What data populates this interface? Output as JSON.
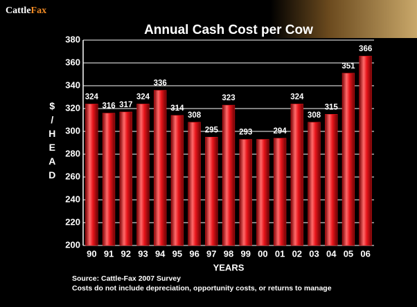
{
  "logo": {
    "first": "Cattle",
    "second": "Fax"
  },
  "chart_data": {
    "type": "bar",
    "title": "Annual Cash Cost per Cow",
    "categories": [
      "90",
      "91",
      "92",
      "93",
      "94",
      "95",
      "96",
      "97",
      "98",
      "99",
      "00",
      "01",
      "02",
      "03",
      "04",
      "05",
      "06"
    ],
    "values": [
      324,
      316,
      317,
      324,
      336,
      314,
      308,
      295,
      323,
      293,
      293,
      294,
      324,
      308,
      315,
      351,
      366
    ],
    "value_labels": [
      "324",
      "316",
      "317",
      "324",
      "336",
      "314",
      "308",
      "295",
      "323",
      "293",
      null,
      "294",
      "324",
      "308",
      "315",
      "351",
      "366"
    ],
    "color": "#e8151b",
    "ylim": [
      200,
      380
    ],
    "yticks": [
      200,
      220,
      240,
      260,
      280,
      300,
      320,
      340,
      360,
      380
    ],
    "grid": true,
    "y_label": "$/HEAD",
    "x_label": "YEARS",
    "notes": [
      "Source:  Cattle-Fax 2007 Survey",
      "Costs do not include depreciation, opportunity costs, or returns to manage"
    ]
  }
}
